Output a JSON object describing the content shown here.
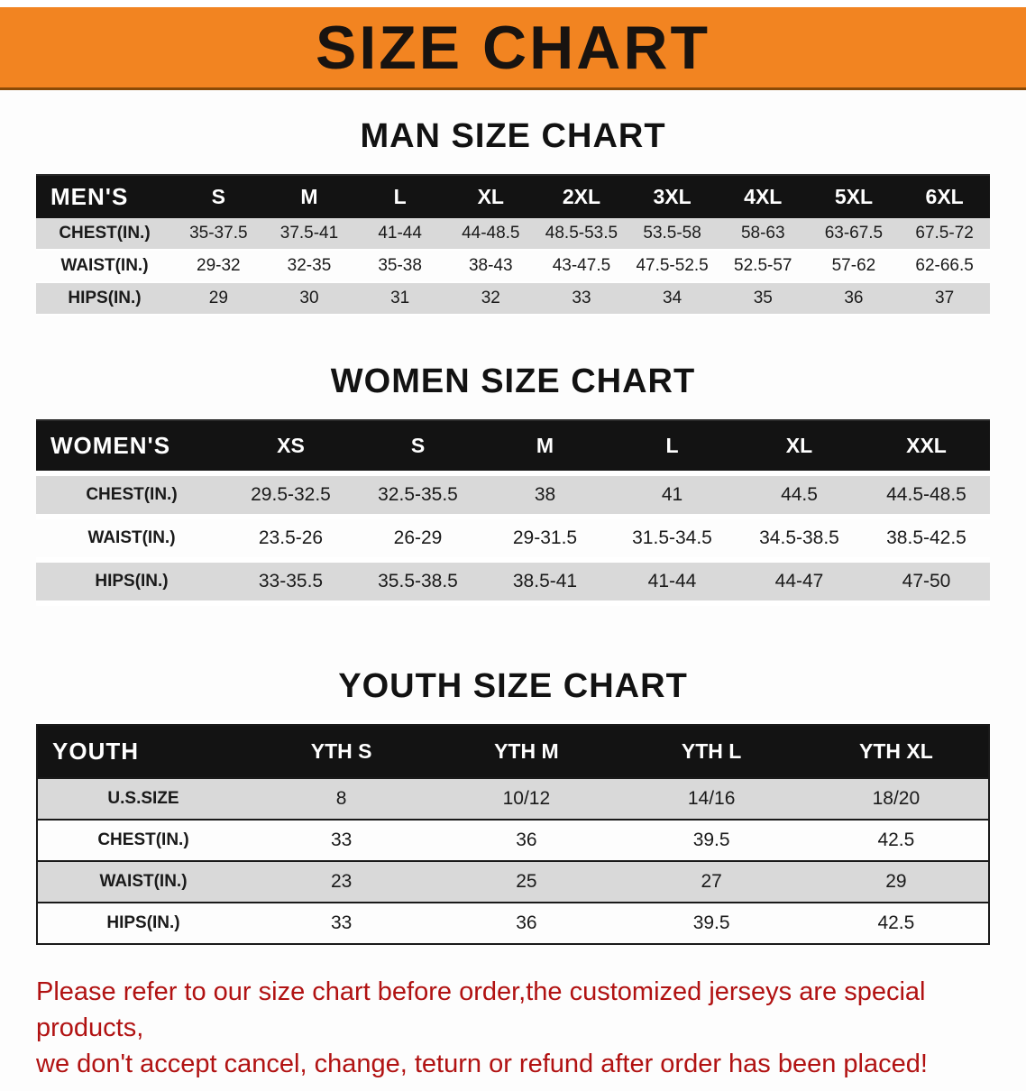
{
  "banner": {
    "title": "SIZE CHART",
    "bg_color": "#f28421"
  },
  "sections": {
    "men": {
      "heading": "MAN SIZE CHART",
      "table": {
        "header": [
          "MEN'S",
          "S",
          "M",
          "L",
          "XL",
          "2XL",
          "3XL",
          "4XL",
          "5XL",
          "6XL"
        ],
        "rows": [
          {
            "label": "CHEST(IN.)",
            "values": [
              "35-37.5",
              "37.5-41",
              "41-44",
              "44-48.5",
              "48.5-53.5",
              "53.5-58",
              "58-63",
              "63-67.5",
              "67.5-72"
            ]
          },
          {
            "label": "WAIST(IN.)",
            "values": [
              "29-32",
              "32-35",
              "35-38",
              "38-43",
              "43-47.5",
              "47.5-52.5",
              "52.5-57",
              "57-62",
              "62-66.5"
            ]
          },
          {
            "label": "HIPS(IN.)",
            "values": [
              "29",
              "30",
              "31",
              "32",
              "33",
              "34",
              "35",
              "36",
              "37"
            ]
          }
        ]
      }
    },
    "women": {
      "heading": "WOMEN SIZE CHART",
      "table": {
        "header": [
          "WOMEN'S",
          "XS",
          "S",
          "M",
          "L",
          "XL",
          "XXL"
        ],
        "rows": [
          {
            "label": "CHEST(IN.)",
            "values": [
              "29.5-32.5",
              "32.5-35.5",
              "38",
              "41",
              "44.5",
              "44.5-48.5"
            ]
          },
          {
            "label": "WAIST(IN.)",
            "values": [
              "23.5-26",
              "26-29",
              "29-31.5",
              "31.5-34.5",
              "34.5-38.5",
              "38.5-42.5"
            ]
          },
          {
            "label": "HIPS(IN.)",
            "values": [
              "33-35.5",
              "35.5-38.5",
              "38.5-41",
              "41-44",
              "44-47",
              "47-50"
            ]
          }
        ]
      }
    },
    "youth": {
      "heading": "YOUTH SIZE CHART",
      "table": {
        "header": [
          "YOUTH",
          "YTH S",
          "YTH M",
          "YTH L",
          "YTH XL"
        ],
        "rows": [
          {
            "label": "U.S.SIZE",
            "values": [
              "8",
              "10/12",
              "14/16",
              "18/20"
            ]
          },
          {
            "label": "CHEST(IN.)",
            "values": [
              "33",
              "36",
              "39.5",
              "42.5"
            ]
          },
          {
            "label": "WAIST(IN.)",
            "values": [
              "23",
              "25",
              "27",
              "29"
            ]
          },
          {
            "label": "HIPS(IN.)",
            "values": [
              "33",
              "36",
              "39.5",
              "42.5"
            ]
          }
        ]
      }
    }
  },
  "footer": {
    "line1": "Please refer to our size chart before order,the customized jerseys are special products,",
    "line2": "we don't accept cancel, change, teturn or refund after order has been placed!",
    "text_color": "#b11212"
  }
}
